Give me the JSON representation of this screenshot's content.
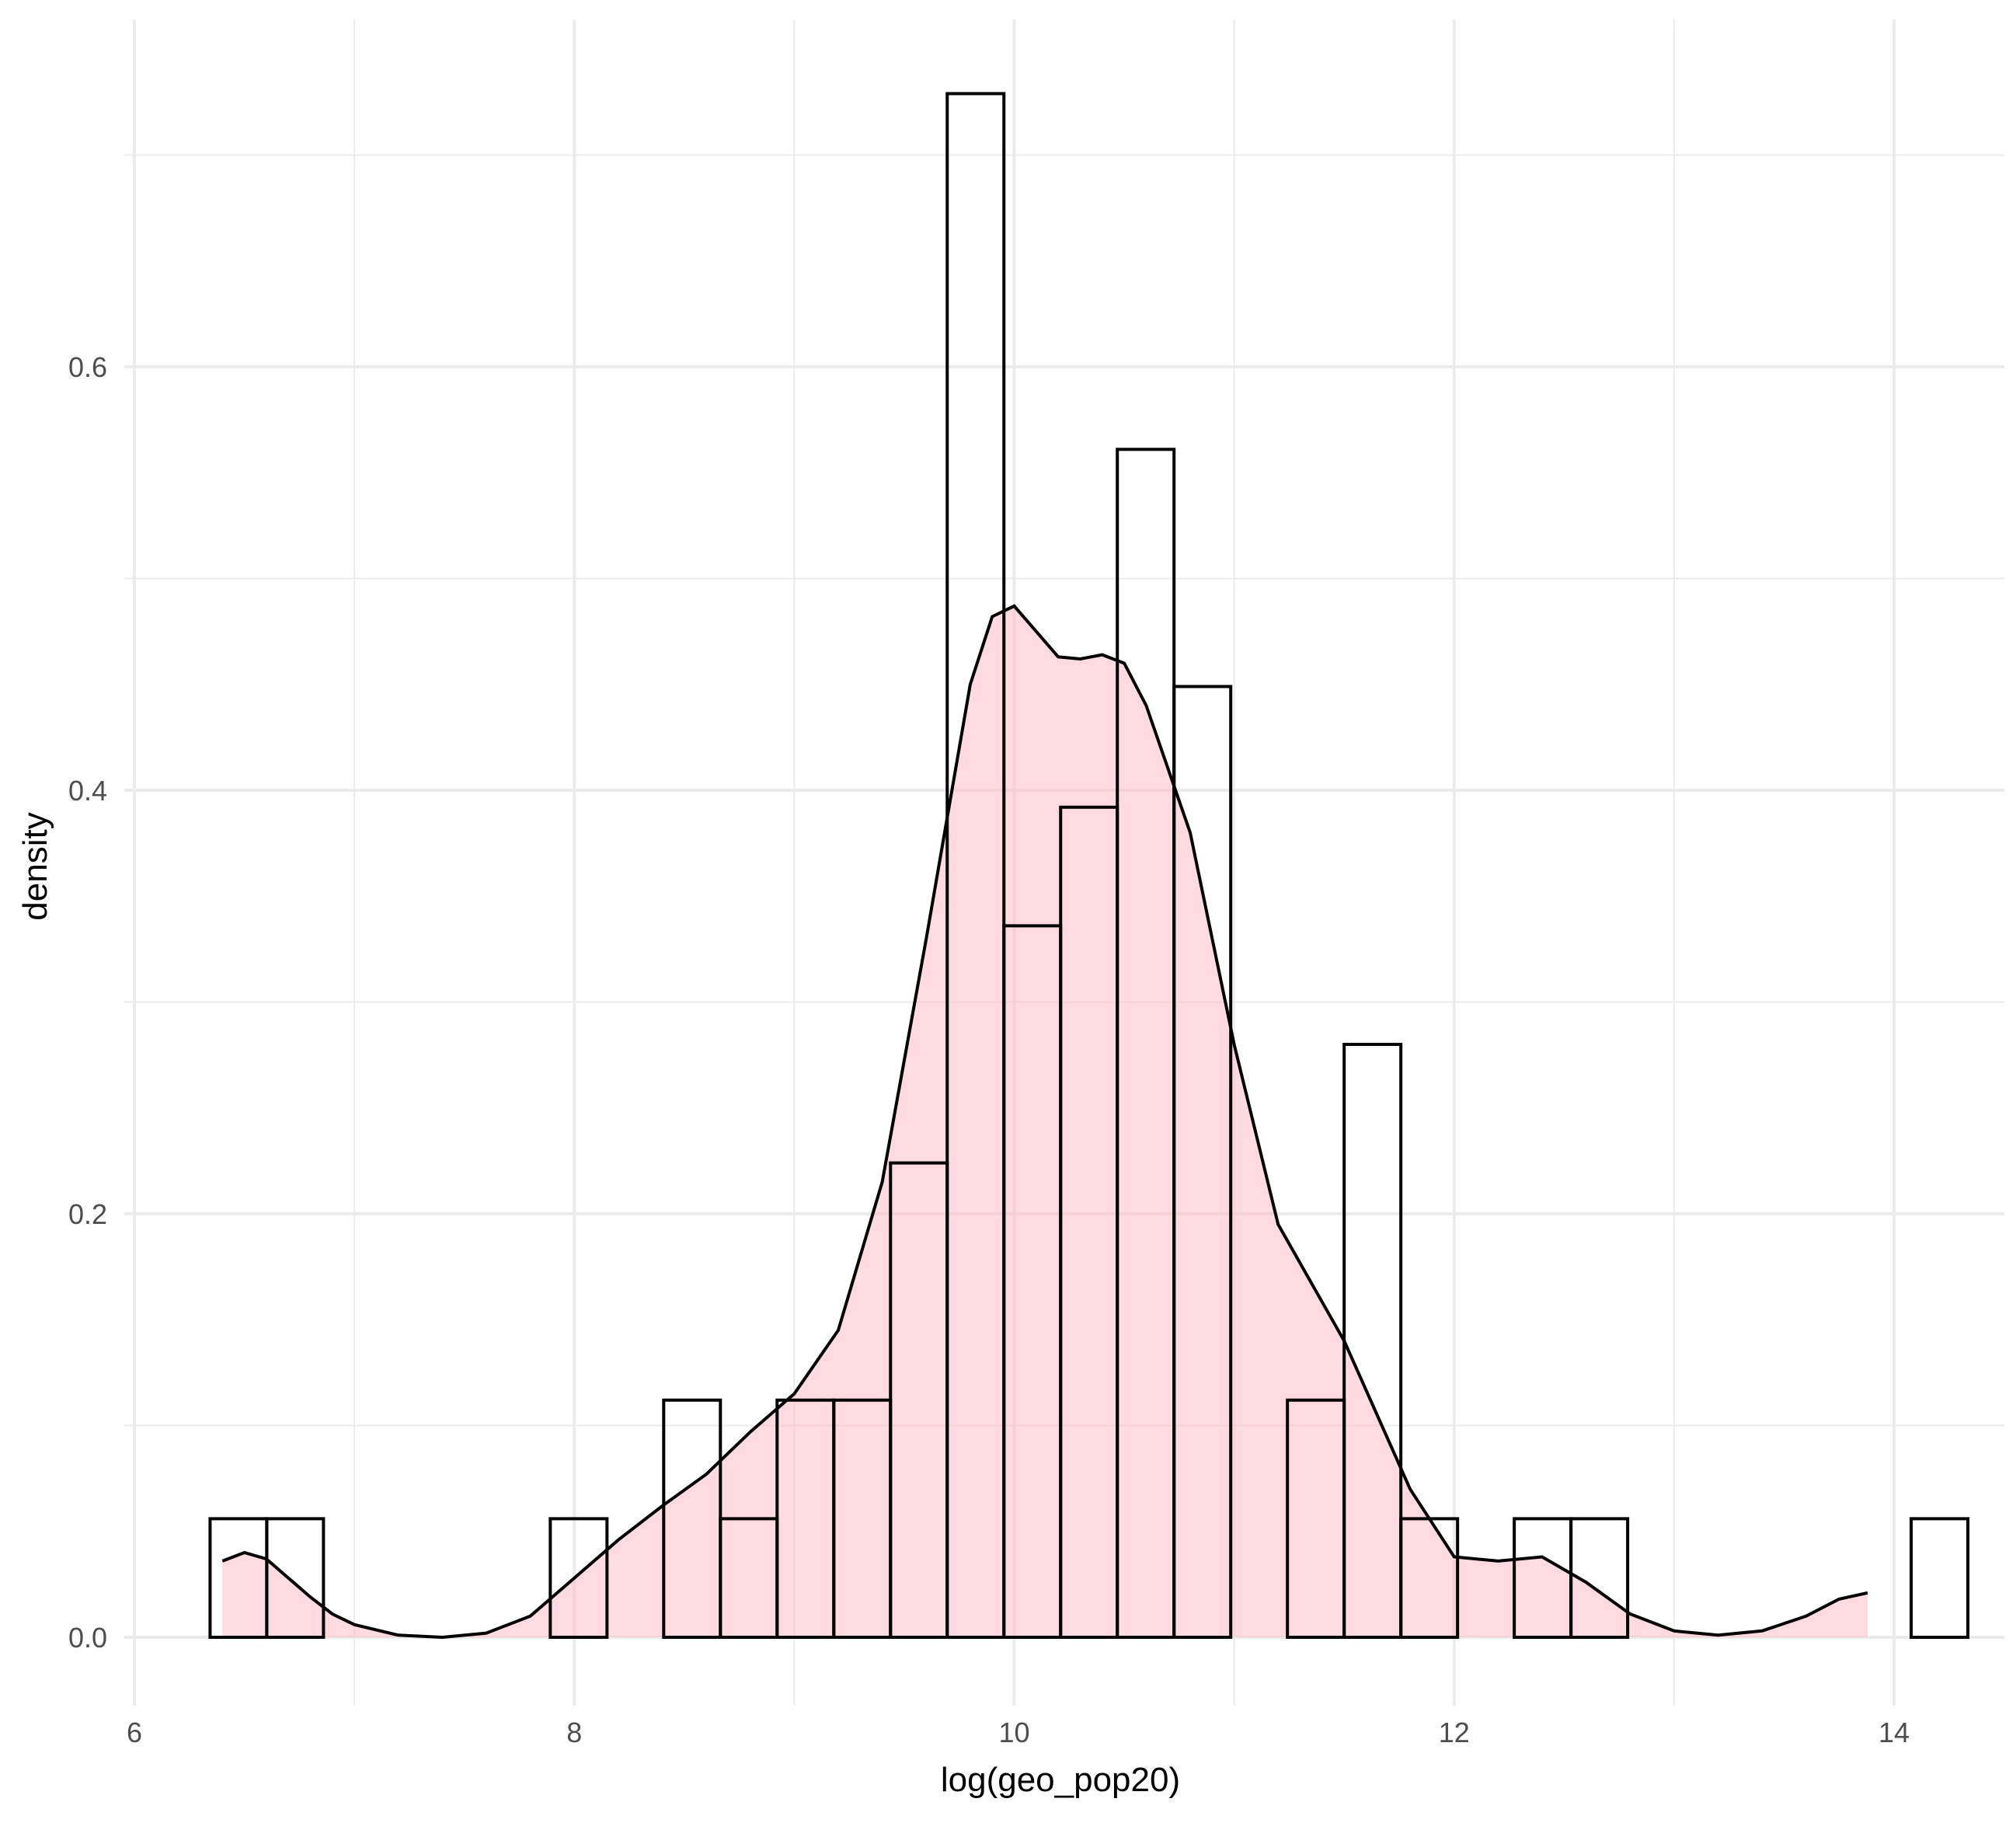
{
  "chart_data": {
    "type": "histogram",
    "xlabel": "log(geo_pop20)",
    "ylabel": "density",
    "xlim": [
      6,
      14.5
    ],
    "ylim": [
      0,
      0.74
    ],
    "x_ticks": [
      6,
      8,
      10,
      12,
      14
    ],
    "x_tick_labels": [
      "6",
      "8",
      "10",
      "12",
      "14"
    ],
    "y_ticks": [
      0,
      0.2,
      0.4,
      0.6
    ],
    "y_tick_labels": [
      "0.0",
      "0.2",
      "0.4",
      "0.6"
    ],
    "x_minor": [
      7,
      9,
      11,
      13
    ],
    "y_minor": [
      0.1,
      0.3,
      0.5,
      0.7
    ],
    "grid": true,
    "histogram": {
      "bin_start": 6.344,
      "bin_width": 0.2578,
      "densities": [
        0.056,
        0.056,
        0,
        0,
        0,
        0,
        0.056,
        0,
        0.112,
        0.056,
        0.112,
        0.112,
        0.224,
        0.729,
        0.336,
        0.392,
        0.561,
        0.449,
        0,
        0.112,
        0.28,
        0.056,
        0,
        0.056,
        0.056,
        0,
        0,
        0,
        0,
        0,
        0.056
      ],
      "outline_color": "#000000"
    },
    "density_curve": {
      "fill_color": "#ffb6c1",
      "line_color": "#000000",
      "points": [
        [
          6.4,
          0.036
        ],
        [
          6.5,
          0.04
        ],
        [
          6.6,
          0.037
        ],
        [
          6.7,
          0.028
        ],
        [
          6.8,
          0.019
        ],
        [
          6.9,
          0.011
        ],
        [
          7.0,
          0.006
        ],
        [
          7.2,
          0.001
        ],
        [
          7.4,
          0.0
        ],
        [
          7.6,
          0.002
        ],
        [
          7.8,
          0.01
        ],
        [
          8.0,
          0.028
        ],
        [
          8.2,
          0.046
        ],
        [
          8.4,
          0.062
        ],
        [
          8.6,
          0.077
        ],
        [
          8.8,
          0.097
        ],
        [
          9.0,
          0.115
        ],
        [
          9.2,
          0.145
        ],
        [
          9.4,
          0.215
        ],
        [
          9.6,
          0.33
        ],
        [
          9.8,
          0.45
        ],
        [
          9.9,
          0.482
        ],
        [
          10.0,
          0.487
        ],
        [
          10.1,
          0.475
        ],
        [
          10.2,
          0.463
        ],
        [
          10.3,
          0.462
        ],
        [
          10.4,
          0.464
        ],
        [
          10.5,
          0.46
        ],
        [
          10.6,
          0.44
        ],
        [
          10.8,
          0.38
        ],
        [
          11.0,
          0.28
        ],
        [
          11.2,
          0.195
        ],
        [
          11.5,
          0.14
        ],
        [
          11.8,
          0.07
        ],
        [
          12.0,
          0.038
        ],
        [
          12.2,
          0.036
        ],
        [
          12.4,
          0.038
        ],
        [
          12.6,
          0.026
        ],
        [
          12.8,
          0.011
        ],
        [
          13.0,
          0.003
        ],
        [
          13.2,
          0.001
        ],
        [
          13.4,
          0.003
        ],
        [
          13.6,
          0.01
        ],
        [
          13.75,
          0.018
        ],
        [
          13.88,
          0.021
        ]
      ]
    }
  }
}
